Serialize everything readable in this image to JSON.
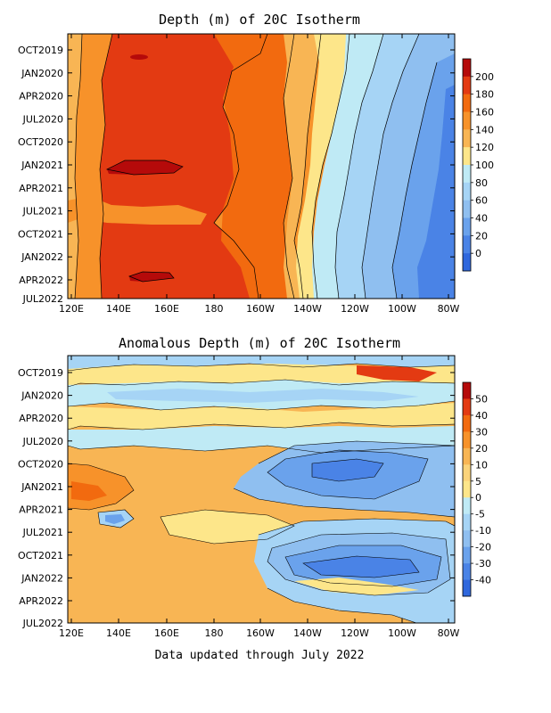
{
  "footer": "Data updated through July 2022",
  "chart_data": [
    {
      "type": "heatmap",
      "title": "Depth (m) of 20C Isotherm",
      "x_ticks": [
        "120E",
        "140E",
        "160E",
        "180",
        "160W",
        "140W",
        "120W",
        "100W",
        "80W"
      ],
      "y_ticks": [
        "OCT2019",
        "JAN2020",
        "APR2020",
        "JUL2020",
        "OCT2020",
        "JAN2021",
        "APR2021",
        "JUL2021",
        "OCT2021",
        "JAN2022",
        "APR2022",
        "JUL2022"
      ],
      "colorbar": {
        "labels": [
          "200",
          "180",
          "160",
          "140",
          "120",
          "100",
          "80",
          "60",
          "40",
          "20",
          "0"
        ],
        "colors": [
          "#b50a0a",
          "#e33a12",
          "#f26a0f",
          "#f7922a",
          "#f8b554",
          "#fde68a",
          "#bfeaf5",
          "#a6d4f5",
          "#8fbff0",
          "#6aa2ec",
          "#4a83e6",
          "#2f67dd"
        ]
      },
      "grid": false,
      "legend": "right"
    },
    {
      "type": "heatmap",
      "title": "Anomalous Depth (m) of 20C Isotherm",
      "x_ticks": [
        "120E",
        "140E",
        "160E",
        "180",
        "160W",
        "140W",
        "120W",
        "100W",
        "80W"
      ],
      "y_ticks": [
        "OCT2019",
        "JAN2020",
        "APR2020",
        "JUL2020",
        "OCT2020",
        "JAN2021",
        "APR2021",
        "JUL2021",
        "OCT2021",
        "JAN2022",
        "APR2022",
        "JUL2022"
      ],
      "colorbar": {
        "labels": [
          "50",
          "40",
          "30",
          "20",
          "10",
          "5",
          "0",
          "-5",
          "-10",
          "-20",
          "-30",
          "-40"
        ],
        "colors": [
          "#b50a0a",
          "#e33a12",
          "#f26a0f",
          "#f7922a",
          "#f8b554",
          "#fbd37a",
          "#fde68a",
          "#bfeaf5",
          "#a6d4f5",
          "#8fbff0",
          "#6aa2ec",
          "#4a83e6",
          "#2f67dd"
        ]
      },
      "grid": false,
      "legend": "right"
    }
  ]
}
